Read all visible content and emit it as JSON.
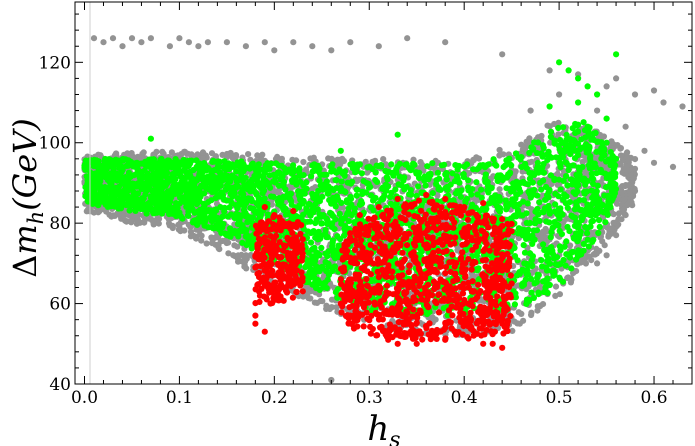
{
  "chart_data": {
    "type": "scatter",
    "xlabel": "h_s",
    "ylabel": "Δm_h(GeV)",
    "xlim": [
      -0.01,
      0.64
    ],
    "ylim": [
      40,
      135
    ],
    "x_ticks": [
      "0.0",
      "0.1",
      "0.2",
      "0.3",
      "0.4",
      "0.5",
      "0.6"
    ],
    "y_ticks": [
      "40",
      "60",
      "80",
      "100",
      "120"
    ],
    "x_tick_values": [
      0.0,
      0.1,
      0.2,
      0.3,
      0.4,
      0.5,
      0.6
    ],
    "y_tick_values": [
      40,
      60,
      80,
      100,
      120
    ],
    "grid": false,
    "series": [
      {
        "color": "#939393",
        "regions": [
          {
            "x": [
              0.0,
              0.58
            ],
            "lower": [
              [
                0.0,
                83
              ],
              [
                0.05,
                80
              ],
              [
                0.1,
                78
              ],
              [
                0.15,
                72
              ],
              [
                0.2,
                64
              ],
              [
                0.25,
                59
              ],
              [
                0.3,
                55
              ],
              [
                0.35,
                52
              ],
              [
                0.4,
                52
              ],
              [
                0.45,
                53
              ],
              [
                0.5,
                62
              ],
              [
                0.55,
                75
              ],
              [
                0.58,
                85
              ]
            ],
            "upper": [
              [
                0.0,
                97
              ],
              [
                0.1,
                98
              ],
              [
                0.2,
                97
              ],
              [
                0.3,
                96
              ],
              [
                0.4,
                96
              ],
              [
                0.45,
                99
              ],
              [
                0.5,
                106
              ],
              [
                0.55,
                102
              ],
              [
                0.58,
                96
              ]
            ]
          }
        ],
        "points": [
          [
            0.01,
            126
          ],
          [
            0.02,
            125
          ],
          [
            0.03,
            126
          ],
          [
            0.04,
            124
          ],
          [
            0.05,
            126
          ],
          [
            0.06,
            125
          ],
          [
            0.07,
            126
          ],
          [
            0.09,
            124
          ],
          [
            0.1,
            126
          ],
          [
            0.11,
            125
          ],
          [
            0.12,
            124
          ],
          [
            0.13,
            125
          ],
          [
            0.15,
            125
          ],
          [
            0.17,
            124
          ],
          [
            0.19,
            125
          ],
          [
            0.2,
            123
          ],
          [
            0.22,
            125
          ],
          [
            0.24,
            124
          ],
          [
            0.26,
            123
          ],
          [
            0.28,
            125
          ],
          [
            0.31,
            124
          ],
          [
            0.34,
            126
          ],
          [
            0.38,
            125
          ],
          [
            0.44,
            122
          ],
          [
            0.49,
            118
          ],
          [
            0.52,
            117
          ],
          [
            0.56,
            116
          ],
          [
            0.58,
            112
          ],
          [
            0.6,
            113
          ],
          [
            0.61,
            110
          ],
          [
            0.63,
            109
          ],
          [
            0.55,
            114
          ],
          [
            0.54,
            108
          ],
          [
            0.57,
            104
          ],
          [
            0.59,
            98
          ],
          [
            0.6,
            95
          ],
          [
            0.62,
            94
          ],
          [
            0.58,
            88
          ],
          [
            0.57,
            82
          ],
          [
            0.56,
            77
          ],
          [
            0.55,
            72
          ],
          [
            0.54,
            70
          ],
          [
            0.26,
            41
          ],
          [
            0.2,
            88
          ],
          [
            0.06,
            84
          ],
          [
            0.12,
            82
          ],
          [
            0.02,
            86
          ],
          [
            0.53,
            100
          ],
          [
            0.5,
            112
          ],
          [
            0.47,
            108
          ]
        ]
      },
      {
        "color": "#00ff00",
        "regions": [
          {
            "x": [
              0.0,
              0.56
            ],
            "lower": [
              [
                0.0,
                85
              ],
              [
                0.05,
                83
              ],
              [
                0.1,
                81
              ],
              [
                0.15,
                77
              ],
              [
                0.2,
                70
              ],
              [
                0.25,
                63
              ],
              [
                0.28,
                60
              ],
              [
                0.3,
                58
              ],
              [
                0.35,
                57
              ],
              [
                0.4,
                57
              ],
              [
                0.45,
                58
              ],
              [
                0.5,
                64
              ],
              [
                0.55,
                80
              ],
              [
                0.56,
                88
              ]
            ],
            "upper": [
              [
                0.0,
                96
              ],
              [
                0.1,
                96
              ],
              [
                0.2,
                95
              ],
              [
                0.3,
                95
              ],
              [
                0.4,
                95
              ],
              [
                0.45,
                97
              ],
              [
                0.5,
                104
              ],
              [
                0.53,
                106
              ],
              [
                0.56,
                96
              ]
            ]
          }
        ],
        "points": [
          [
            0.5,
            120
          ],
          [
            0.51,
            118
          ],
          [
            0.52,
            116
          ],
          [
            0.53,
            114
          ],
          [
            0.56,
            122
          ],
          [
            0.54,
            112
          ],
          [
            0.52,
            110
          ],
          [
            0.55,
            106
          ],
          [
            0.07,
            101
          ],
          [
            0.27,
            98
          ],
          [
            0.33,
            102
          ],
          [
            0.49,
            109
          ],
          [
            0.53,
            104
          ],
          [
            0.55,
            100
          ],
          [
            0.56,
            96
          ]
        ]
      },
      {
        "color": "#ff0000",
        "regions": [
          {
            "x": [
              0.18,
              0.23
            ],
            "lower": [
              [
                0.18,
                60
              ],
              [
                0.2,
                60
              ],
              [
                0.23,
                62
              ]
            ],
            "upper": [
              [
                0.18,
                80
              ],
              [
                0.2,
                82
              ],
              [
                0.23,
                80
              ]
            ]
          },
          {
            "x": [
              0.27,
              0.45
            ],
            "lower": [
              [
                0.27,
                55
              ],
              [
                0.3,
                52
              ],
              [
                0.35,
                51
              ],
              [
                0.4,
                51
              ],
              [
                0.45,
                52
              ]
            ],
            "upper": [
              [
                0.27,
                76
              ],
              [
                0.3,
                82
              ],
              [
                0.35,
                86
              ],
              [
                0.4,
                84
              ],
              [
                0.45,
                80
              ]
            ]
          }
        ],
        "points": [
          [
            0.18,
            55
          ],
          [
            0.18,
            57
          ],
          [
            0.19,
            53
          ],
          [
            0.2,
            82
          ],
          [
            0.21,
            80
          ],
          [
            0.22,
            83
          ],
          [
            0.19,
            84
          ],
          [
            0.23,
            76
          ],
          [
            0.22,
            70
          ],
          [
            0.29,
            82
          ],
          [
            0.31,
            84
          ],
          [
            0.33,
            86
          ],
          [
            0.36,
            87
          ],
          [
            0.38,
            86
          ],
          [
            0.4,
            84
          ],
          [
            0.42,
            85
          ],
          [
            0.44,
            81
          ],
          [
            0.45,
            78
          ],
          [
            0.45,
            65
          ],
          [
            0.44,
            55
          ],
          [
            0.44,
            49
          ],
          [
            0.43,
            50
          ],
          [
            0.42,
            50
          ],
          [
            0.33,
            50
          ],
          [
            0.32,
            51
          ],
          [
            0.35,
            50
          ],
          [
            0.28,
            57
          ],
          [
            0.27,
            60
          ],
          [
            0.41,
            52
          ],
          [
            0.38,
            51
          ]
        ]
      }
    ]
  }
}
